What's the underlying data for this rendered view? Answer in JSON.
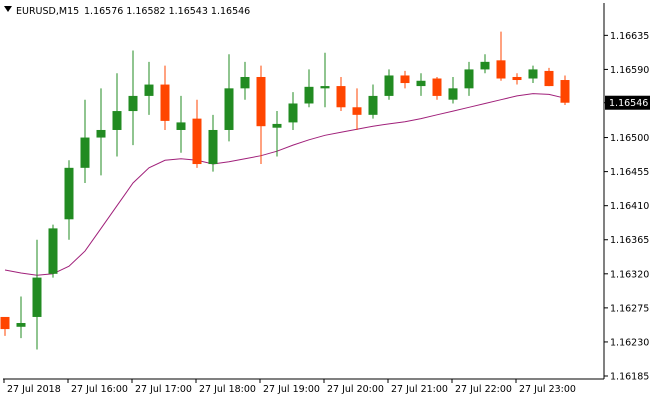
{
  "header": {
    "symbol_label": "EURUSD,M15",
    "ohlc_label": "1.16576 1.16582 1.16543 1.16546"
  },
  "chart_data": {
    "type": "candlestick",
    "symbol": "EURUSD",
    "timeframe": "M15",
    "ylim": [
      1.16185,
      1.1665
    ],
    "yticks": [
      {
        "label": "1.16635",
        "value": 1.16635
      },
      {
        "label": "1.16590",
        "value": 1.1659
      },
      {
        "label": "1.16546",
        "value": 1.16546,
        "current": true
      },
      {
        "label": "1.16500",
        "value": 1.165
      },
      {
        "label": "1.16455",
        "value": 1.16455
      },
      {
        "label": "1.16410",
        "value": 1.1641
      },
      {
        "label": "1.16365",
        "value": 1.16365
      },
      {
        "label": "1.16320",
        "value": 1.1632
      },
      {
        "label": "1.16275",
        "value": 1.16275
      },
      {
        "label": "1.16230",
        "value": 1.1623
      },
      {
        "label": "1.16185",
        "value": 1.16185
      }
    ],
    "xticks": [
      {
        "label": "27 Jul 2018",
        "index": 0
      },
      {
        "label": "27 Jul 16:00",
        "index": 4
      },
      {
        "label": "27 Jul 17:00",
        "index": 8
      },
      {
        "label": "27 Jul 18:00",
        "index": 12
      },
      {
        "label": "27 Jul 19:00",
        "index": 16
      },
      {
        "label": "27 Jul 20:00",
        "index": 20
      },
      {
        "label": "27 Jul 21:00",
        "index": 24
      },
      {
        "label": "27 Jul 22:00",
        "index": 28
      },
      {
        "label": "27 Jul 23:00",
        "index": 32
      }
    ],
    "candles": [
      {
        "o": 1.16263,
        "h": 1.16263,
        "l": 1.16238,
        "c": 1.16247
      },
      {
        "o": 1.1625,
        "h": 1.1629,
        "l": 1.16235,
        "c": 1.16255
      },
      {
        "o": 1.16263,
        "h": 1.16365,
        "l": 1.1622,
        "c": 1.16315
      },
      {
        "o": 1.1632,
        "h": 1.16385,
        "l": 1.16315,
        "c": 1.1638
      },
      {
        "o": 1.16392,
        "h": 1.1647,
        "l": 1.16365,
        "c": 1.1646
      },
      {
        "o": 1.1646,
        "h": 1.1655,
        "l": 1.1644,
        "c": 1.165
      },
      {
        "o": 1.165,
        "h": 1.16565,
        "l": 1.1645,
        "c": 1.1651
      },
      {
        "o": 1.1651,
        "h": 1.16585,
        "l": 1.16475,
        "c": 1.16535
      },
      {
        "o": 1.16535,
        "h": 1.16615,
        "l": 1.1649,
        "c": 1.16555
      },
      {
        "o": 1.16555,
        "h": 1.166,
        "l": 1.1653,
        "c": 1.1657
      },
      {
        "o": 1.1657,
        "h": 1.16595,
        "l": 1.1651,
        "c": 1.16522
      },
      {
        "o": 1.1651,
        "h": 1.16555,
        "l": 1.1648,
        "c": 1.1652
      },
      {
        "o": 1.16525,
        "h": 1.1655,
        "l": 1.1646,
        "c": 1.16465
      },
      {
        "o": 1.16465,
        "h": 1.1653,
        "l": 1.16455,
        "c": 1.1651
      },
      {
        "o": 1.1651,
        "h": 1.1661,
        "l": 1.16495,
        "c": 1.16565
      },
      {
        "o": 1.16565,
        "h": 1.166,
        "l": 1.1655,
        "c": 1.1658
      },
      {
        "o": 1.1658,
        "h": 1.16595,
        "l": 1.16465,
        "c": 1.16515
      },
      {
        "o": 1.16513,
        "h": 1.16535,
        "l": 1.16475,
        "c": 1.16518
      },
      {
        "o": 1.1652,
        "h": 1.1656,
        "l": 1.1651,
        "c": 1.16545
      },
      {
        "o": 1.16545,
        "h": 1.1659,
        "l": 1.1654,
        "c": 1.16567
      },
      {
        "o": 1.16565,
        "h": 1.16612,
        "l": 1.1654,
        "c": 1.16568
      },
      {
        "o": 1.16568,
        "h": 1.1658,
        "l": 1.16535,
        "c": 1.1654
      },
      {
        "o": 1.1654,
        "h": 1.16565,
        "l": 1.1651,
        "c": 1.1653
      },
      {
        "o": 1.1653,
        "h": 1.1657,
        "l": 1.16525,
        "c": 1.16555
      },
      {
        "o": 1.16555,
        "h": 1.1659,
        "l": 1.1655,
        "c": 1.16582
      },
      {
        "o": 1.16582,
        "h": 1.16588,
        "l": 1.16565,
        "c": 1.16572
      },
      {
        "o": 1.16568,
        "h": 1.16585,
        "l": 1.16555,
        "c": 1.16575
      },
      {
        "o": 1.16578,
        "h": 1.1658,
        "l": 1.1655,
        "c": 1.16555
      },
      {
        "o": 1.1655,
        "h": 1.1658,
        "l": 1.16545,
        "c": 1.16565
      },
      {
        "o": 1.16565,
        "h": 1.166,
        "l": 1.16555,
        "c": 1.1659
      },
      {
        "o": 1.1659,
        "h": 1.1661,
        "l": 1.16585,
        "c": 1.166
      },
      {
        "o": 1.16602,
        "h": 1.1664,
        "l": 1.16575,
        "c": 1.16578
      },
      {
        "o": 1.1658,
        "h": 1.16585,
        "l": 1.1657,
        "c": 1.16576
      },
      {
        "o": 1.16578,
        "h": 1.16595,
        "l": 1.16572,
        "c": 1.1659
      },
      {
        "o": 1.16588,
        "h": 1.16592,
        "l": 1.16568,
        "c": 1.16568
      },
      {
        "o": 1.16576,
        "h": 1.16582,
        "l": 1.16543,
        "c": 1.16546
      }
    ],
    "moving_average": [
      1.16325,
      1.16321,
      1.16318,
      1.1632,
      1.1633,
      1.1635,
      1.1638,
      1.1641,
      1.1644,
      1.1646,
      1.1647,
      1.16472,
      1.1647,
      1.16465,
      1.16468,
      1.16472,
      1.16476,
      1.16482,
      1.1649,
      1.16497,
      1.16503,
      1.16507,
      1.16511,
      1.16515,
      1.16518,
      1.16521,
      1.16525,
      1.1653,
      1.16535,
      1.1654,
      1.16545,
      1.1655,
      1.16555,
      1.16558,
      1.16557,
      1.16552
    ],
    "colors": {
      "bull": "#228b22",
      "bear": "#ff4500",
      "ma": "#a0207a",
      "axis": "#000000",
      "current_price_bg": "#000000",
      "current_price_fg": "#ffffff"
    }
  }
}
